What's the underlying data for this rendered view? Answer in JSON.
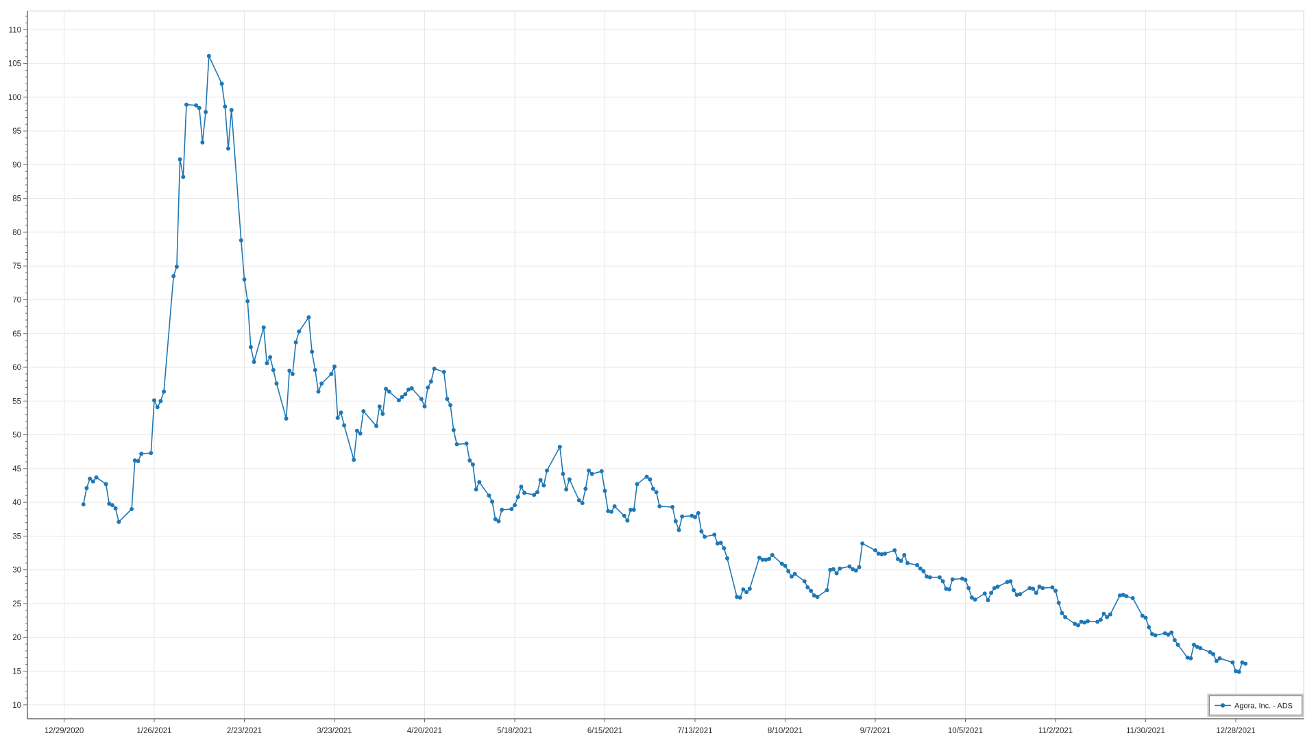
{
  "chart": {
    "colors": {
      "line": "#1f77b4",
      "marker": "#1f77b4",
      "grid": "#e7e7e7",
      "plot_border": "#d6d6d6",
      "axis_line": "#4a4a4a",
      "tick": "#666666",
      "label": "#2b2b2b",
      "legend_border": "#8c8c8c",
      "background": "#ffffff"
    },
    "legend": {
      "label": "Agora, Inc. - ADS",
      "position": "bottom-right-inside"
    }
  },
  "chart_data": {
    "type": "line",
    "title": "",
    "xlabel": "",
    "ylabel": "",
    "grid": true,
    "legend_position": "bottom-right-inside",
    "ylim": [
      7.9,
      112.8
    ],
    "y_ticks": [
      10,
      15,
      20,
      25,
      30,
      35,
      40,
      45,
      50,
      55,
      60,
      65,
      70,
      75,
      80,
      85,
      90,
      95,
      100,
      105,
      110
    ],
    "x_ticks": [
      {
        "label": "12/29/2020",
        "date": "2020-12-29"
      },
      {
        "label": "1/26/2021",
        "date": "2021-01-26"
      },
      {
        "label": "2/23/2021",
        "date": "2021-02-23"
      },
      {
        "label": "3/23/2021",
        "date": "2021-03-23"
      },
      {
        "label": "4/20/2021",
        "date": "2021-04-20"
      },
      {
        "label": "5/18/2021",
        "date": "2021-05-18"
      },
      {
        "label": "6/15/2021",
        "date": "2021-06-15"
      },
      {
        "label": "7/13/2021",
        "date": "2021-07-13"
      },
      {
        "label": "8/10/2021",
        "date": "2021-08-10"
      },
      {
        "label": "9/7/2021",
        "date": "2021-09-07"
      },
      {
        "label": "10/5/2021",
        "date": "2021-10-05"
      },
      {
        "label": "11/2/2021",
        "date": "2021-11-02"
      },
      {
        "label": "11/30/2021",
        "date": "2021-11-30"
      },
      {
        "label": "12/28/2021",
        "date": "2021-12-28"
      }
    ],
    "series": [
      {
        "name": "Agora, Inc. - ADS",
        "points": [
          [
            "2021-01-04",
            39.7
          ],
          [
            "2021-01-05",
            42.1
          ],
          [
            "2021-01-06",
            43.5
          ],
          [
            "2021-01-07",
            43.1
          ],
          [
            "2021-01-08",
            43.7
          ],
          [
            "2021-01-11",
            42.7
          ],
          [
            "2021-01-12",
            39.8
          ],
          [
            "2021-01-13",
            39.6
          ],
          [
            "2021-01-14",
            39.1
          ],
          [
            "2021-01-15",
            37.1
          ],
          [
            "2021-01-19",
            39.0
          ],
          [
            "2021-01-20",
            46.2
          ],
          [
            "2021-01-21",
            46.1
          ],
          [
            "2021-01-22",
            47.2
          ],
          [
            "2021-01-25",
            47.3
          ],
          [
            "2021-01-26",
            55.1
          ],
          [
            "2021-01-27",
            54.1
          ],
          [
            "2021-01-28",
            55.0
          ],
          [
            "2021-01-29",
            56.4
          ],
          [
            "2021-02-01",
            73.5
          ],
          [
            "2021-02-02",
            74.9
          ],
          [
            "2021-02-03",
            90.8
          ],
          [
            "2021-02-04",
            88.2
          ],
          [
            "2021-02-05",
            98.9
          ],
          [
            "2021-02-08",
            98.8
          ],
          [
            "2021-02-09",
            98.4
          ],
          [
            "2021-02-10",
            93.3
          ],
          [
            "2021-02-11",
            97.8
          ],
          [
            "2021-02-12",
            106.1
          ],
          [
            "2021-02-16",
            102.0
          ],
          [
            "2021-02-17",
            98.6
          ],
          [
            "2021-02-18",
            92.4
          ],
          [
            "2021-02-19",
            98.1
          ],
          [
            "2021-02-22",
            78.8
          ],
          [
            "2021-02-23",
            73.0
          ],
          [
            "2021-02-24",
            69.8
          ],
          [
            "2021-02-25",
            63.0
          ],
          [
            "2021-02-26",
            60.8
          ],
          [
            "2021-03-01",
            65.9
          ],
          [
            "2021-03-02",
            60.6
          ],
          [
            "2021-03-03",
            61.5
          ],
          [
            "2021-03-04",
            59.6
          ],
          [
            "2021-03-05",
            57.6
          ],
          [
            "2021-03-08",
            52.4
          ],
          [
            "2021-03-09",
            59.5
          ],
          [
            "2021-03-10",
            59.0
          ],
          [
            "2021-03-11",
            63.7
          ],
          [
            "2021-03-12",
            65.3
          ],
          [
            "2021-03-15",
            67.4
          ],
          [
            "2021-03-16",
            62.3
          ],
          [
            "2021-03-17",
            59.6
          ],
          [
            "2021-03-18",
            56.4
          ],
          [
            "2021-03-19",
            57.6
          ],
          [
            "2021-03-22",
            59.0
          ],
          [
            "2021-03-23",
            60.1
          ],
          [
            "2021-03-24",
            52.5
          ],
          [
            "2021-03-25",
            53.3
          ],
          [
            "2021-03-26",
            51.4
          ],
          [
            "2021-03-29",
            46.3
          ],
          [
            "2021-03-30",
            50.6
          ],
          [
            "2021-03-31",
            50.2
          ],
          [
            "2021-04-01",
            53.5
          ],
          [
            "2021-04-05",
            51.3
          ],
          [
            "2021-04-06",
            54.2
          ],
          [
            "2021-04-07",
            53.1
          ],
          [
            "2021-04-08",
            56.8
          ],
          [
            "2021-04-09",
            56.4
          ],
          [
            "2021-04-12",
            55.1
          ],
          [
            "2021-04-13",
            55.6
          ],
          [
            "2021-04-14",
            56.0
          ],
          [
            "2021-04-15",
            56.7
          ],
          [
            "2021-04-16",
            56.9
          ],
          [
            "2021-04-19",
            55.3
          ],
          [
            "2021-04-20",
            54.2
          ],
          [
            "2021-04-21",
            57.0
          ],
          [
            "2021-04-22",
            57.9
          ],
          [
            "2021-04-23",
            59.8
          ],
          [
            "2021-04-26",
            59.3
          ],
          [
            "2021-04-27",
            55.3
          ],
          [
            "2021-04-28",
            54.4
          ],
          [
            "2021-04-29",
            50.7
          ],
          [
            "2021-04-30",
            48.6
          ],
          [
            "2021-05-03",
            48.7
          ],
          [
            "2021-05-04",
            46.2
          ],
          [
            "2021-05-05",
            45.6
          ],
          [
            "2021-05-06",
            41.9
          ],
          [
            "2021-05-07",
            43.0
          ],
          [
            "2021-05-10",
            41.0
          ],
          [
            "2021-05-11",
            40.1
          ],
          [
            "2021-05-12",
            37.5
          ],
          [
            "2021-05-13",
            37.2
          ],
          [
            "2021-05-14",
            38.9
          ],
          [
            "2021-05-17",
            39.0
          ],
          [
            "2021-05-18",
            39.6
          ],
          [
            "2021-05-19",
            40.8
          ],
          [
            "2021-05-20",
            42.3
          ],
          [
            "2021-05-21",
            41.4
          ],
          [
            "2021-05-24",
            41.1
          ],
          [
            "2021-05-25",
            41.5
          ],
          [
            "2021-05-26",
            43.3
          ],
          [
            "2021-05-27",
            42.5
          ],
          [
            "2021-05-28",
            44.7
          ],
          [
            "2021-06-01",
            48.2
          ],
          [
            "2021-06-02",
            44.2
          ],
          [
            "2021-06-03",
            41.9
          ],
          [
            "2021-06-04",
            43.4
          ],
          [
            "2021-06-07",
            40.3
          ],
          [
            "2021-06-08",
            39.9
          ],
          [
            "2021-06-09",
            42.0
          ],
          [
            "2021-06-10",
            44.7
          ],
          [
            "2021-06-11",
            44.2
          ],
          [
            "2021-06-14",
            44.6
          ],
          [
            "2021-06-15",
            41.7
          ],
          [
            "2021-06-16",
            38.7
          ],
          [
            "2021-06-17",
            38.6
          ],
          [
            "2021-06-18",
            39.4
          ],
          [
            "2021-06-21",
            38.0
          ],
          [
            "2021-06-22",
            37.3
          ],
          [
            "2021-06-23",
            38.9
          ],
          [
            "2021-06-24",
            38.9
          ],
          [
            "2021-06-25",
            42.7
          ],
          [
            "2021-06-28",
            43.8
          ],
          [
            "2021-06-29",
            43.4
          ],
          [
            "2021-06-30",
            42.0
          ],
          [
            "2021-07-01",
            41.5
          ],
          [
            "2021-07-02",
            39.4
          ],
          [
            "2021-07-06",
            39.3
          ],
          [
            "2021-07-07",
            37.2
          ],
          [
            "2021-07-08",
            35.9
          ],
          [
            "2021-07-09",
            37.9
          ],
          [
            "2021-07-12",
            38.0
          ],
          [
            "2021-07-13",
            37.8
          ],
          [
            "2021-07-14",
            38.4
          ],
          [
            "2021-07-15",
            35.7
          ],
          [
            "2021-07-16",
            34.9
          ],
          [
            "2021-07-19",
            35.2
          ],
          [
            "2021-07-20",
            33.9
          ],
          [
            "2021-07-21",
            34.0
          ],
          [
            "2021-07-22",
            33.2
          ],
          [
            "2021-07-23",
            31.7
          ],
          [
            "2021-07-26",
            26.0
          ],
          [
            "2021-07-27",
            25.9
          ],
          [
            "2021-07-28",
            27.1
          ],
          [
            "2021-07-29",
            26.7
          ],
          [
            "2021-07-30",
            27.2
          ],
          [
            "2021-08-02",
            31.8
          ],
          [
            "2021-08-03",
            31.5
          ],
          [
            "2021-08-04",
            31.5
          ],
          [
            "2021-08-05",
            31.6
          ],
          [
            "2021-08-06",
            32.2
          ],
          [
            "2021-08-09",
            30.9
          ],
          [
            "2021-08-10",
            30.6
          ],
          [
            "2021-08-11",
            29.8
          ],
          [
            "2021-08-12",
            29.0
          ],
          [
            "2021-08-13",
            29.4
          ],
          [
            "2021-08-16",
            28.3
          ],
          [
            "2021-08-17",
            27.4
          ],
          [
            "2021-08-18",
            26.9
          ],
          [
            "2021-08-19",
            26.2
          ],
          [
            "2021-08-20",
            26.0
          ],
          [
            "2021-08-23",
            27.0
          ],
          [
            "2021-08-24",
            30.0
          ],
          [
            "2021-08-25",
            30.1
          ],
          [
            "2021-08-26",
            29.5
          ],
          [
            "2021-08-27",
            30.2
          ],
          [
            "2021-08-30",
            30.5
          ],
          [
            "2021-08-31",
            30.1
          ],
          [
            "2021-09-01",
            29.9
          ],
          [
            "2021-09-02",
            30.4
          ],
          [
            "2021-09-03",
            33.9
          ],
          [
            "2021-09-07",
            32.9
          ],
          [
            "2021-09-08",
            32.4
          ],
          [
            "2021-09-09",
            32.3
          ],
          [
            "2021-09-10",
            32.4
          ],
          [
            "2021-09-13",
            32.9
          ],
          [
            "2021-09-14",
            31.6
          ],
          [
            "2021-09-15",
            31.3
          ],
          [
            "2021-09-16",
            32.2
          ],
          [
            "2021-09-17",
            31.0
          ],
          [
            "2021-09-20",
            30.7
          ],
          [
            "2021-09-21",
            30.2
          ],
          [
            "2021-09-22",
            29.8
          ],
          [
            "2021-09-23",
            29.0
          ],
          [
            "2021-09-24",
            28.9
          ],
          [
            "2021-09-27",
            28.9
          ],
          [
            "2021-09-28",
            28.3
          ],
          [
            "2021-09-29",
            27.2
          ],
          [
            "2021-09-30",
            27.1
          ],
          [
            "2021-10-01",
            28.6
          ],
          [
            "2021-10-04",
            28.7
          ],
          [
            "2021-10-05",
            28.5
          ],
          [
            "2021-10-06",
            27.3
          ],
          [
            "2021-10-07",
            25.9
          ],
          [
            "2021-10-08",
            25.6
          ],
          [
            "2021-10-11",
            26.5
          ],
          [
            "2021-10-12",
            25.5
          ],
          [
            "2021-10-13",
            26.6
          ],
          [
            "2021-10-14",
            27.3
          ],
          [
            "2021-10-15",
            27.5
          ],
          [
            "2021-10-18",
            28.2
          ],
          [
            "2021-10-19",
            28.3
          ],
          [
            "2021-10-20",
            27.0
          ],
          [
            "2021-10-21",
            26.3
          ],
          [
            "2021-10-22",
            26.4
          ],
          [
            "2021-10-25",
            27.3
          ],
          [
            "2021-10-26",
            27.2
          ],
          [
            "2021-10-27",
            26.6
          ],
          [
            "2021-10-28",
            27.5
          ],
          [
            "2021-10-29",
            27.3
          ],
          [
            "2021-11-01",
            27.4
          ],
          [
            "2021-11-02",
            26.9
          ],
          [
            "2021-11-03",
            25.1
          ],
          [
            "2021-11-04",
            23.6
          ],
          [
            "2021-11-05",
            23.0
          ],
          [
            "2021-11-08",
            22.0
          ],
          [
            "2021-11-09",
            21.8
          ],
          [
            "2021-11-10",
            22.3
          ],
          [
            "2021-11-11",
            22.2
          ],
          [
            "2021-11-12",
            22.4
          ],
          [
            "2021-11-15",
            22.3
          ],
          [
            "2021-11-16",
            22.6
          ],
          [
            "2021-11-17",
            23.5
          ],
          [
            "2021-11-18",
            23.0
          ],
          [
            "2021-11-19",
            23.4
          ],
          [
            "2021-11-22",
            26.2
          ],
          [
            "2021-11-23",
            26.3
          ],
          [
            "2021-11-24",
            26.1
          ],
          [
            "2021-11-26",
            25.8
          ],
          [
            "2021-11-29",
            23.2
          ],
          [
            "2021-11-30",
            22.9
          ],
          [
            "2021-12-01",
            21.5
          ],
          [
            "2021-12-02",
            20.5
          ],
          [
            "2021-12-03",
            20.3
          ],
          [
            "2021-12-06",
            20.6
          ],
          [
            "2021-12-07",
            20.4
          ],
          [
            "2021-12-08",
            20.7
          ],
          [
            "2021-12-09",
            19.6
          ],
          [
            "2021-12-10",
            18.9
          ],
          [
            "2021-12-13",
            17.0
          ],
          [
            "2021-12-14",
            16.9
          ],
          [
            "2021-12-15",
            18.9
          ],
          [
            "2021-12-16",
            18.6
          ],
          [
            "2021-12-17",
            18.4
          ],
          [
            "2021-12-20",
            17.8
          ],
          [
            "2021-12-21",
            17.5
          ],
          [
            "2021-12-22",
            16.5
          ],
          [
            "2021-12-23",
            16.9
          ],
          [
            "2021-12-27",
            16.3
          ],
          [
            "2021-12-28",
            15.0
          ],
          [
            "2021-12-29",
            14.9
          ],
          [
            "2021-12-30",
            16.3
          ],
          [
            "2021-12-31",
            16.1
          ]
        ]
      }
    ]
  }
}
